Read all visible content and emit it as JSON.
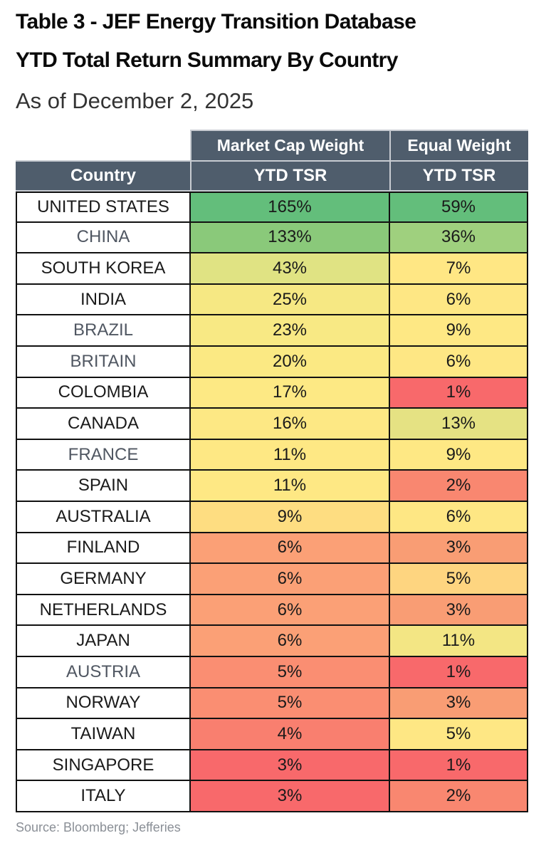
{
  "title_line1": "Table 3 - JEF Energy Transition Database",
  "title_line2": "YTD Total Return Summary By Country",
  "subtitle": "As of December 2, 2025",
  "source": "Source: Bloomberg; Jefferies",
  "header": {
    "group_market_cap": "Market Cap Weight",
    "group_equal": "Equal Weight",
    "col_country": "Country",
    "col_mcap_tsr": "YTD TSR",
    "col_eq_tsr": "YTD TSR"
  },
  "colors": {
    "header_bg": "#4f5d6c",
    "scale_high": "#63be7b",
    "scale_mid": "#ffeb84",
    "scale_low": "#f8696b"
  },
  "chart_data": {
    "type": "table",
    "columns": [
      "Country",
      "Market Cap Weight YTD TSR",
      "Equal Weight YTD TSR"
    ],
    "rows": [
      {
        "country": "UNITED STATES",
        "mcap": "165%",
        "eq": "59%",
        "mcap_value": 165,
        "eq_value": 59
      },
      {
        "country": "CHINA",
        "mcap": "133%",
        "eq": "36%",
        "mcap_value": 133,
        "eq_value": 36
      },
      {
        "country": "SOUTH KOREA",
        "mcap": "43%",
        "eq": "7%",
        "mcap_value": 43,
        "eq_value": 7
      },
      {
        "country": "INDIA",
        "mcap": "25%",
        "eq": "6%",
        "mcap_value": 25,
        "eq_value": 6
      },
      {
        "country": "BRAZIL",
        "mcap": "23%",
        "eq": "9%",
        "mcap_value": 23,
        "eq_value": 9
      },
      {
        "country": "BRITAIN",
        "mcap": "20%",
        "eq": "6%",
        "mcap_value": 20,
        "eq_value": 6
      },
      {
        "country": "COLOMBIA",
        "mcap": "17%",
        "eq": "1%",
        "mcap_value": 17,
        "eq_value": 1
      },
      {
        "country": "CANADA",
        "mcap": "16%",
        "eq": "13%",
        "mcap_value": 16,
        "eq_value": 13
      },
      {
        "country": "FRANCE",
        "mcap": "11%",
        "eq": "9%",
        "mcap_value": 11,
        "eq_value": 9
      },
      {
        "country": "SPAIN",
        "mcap": "11%",
        "eq": "2%",
        "mcap_value": 11,
        "eq_value": 2
      },
      {
        "country": "AUSTRALIA",
        "mcap": "9%",
        "eq": "6%",
        "mcap_value": 9,
        "eq_value": 6
      },
      {
        "country": "FINLAND",
        "mcap": "6%",
        "eq": "3%",
        "mcap_value": 6,
        "eq_value": 3
      },
      {
        "country": "GERMANY",
        "mcap": "6%",
        "eq": "5%",
        "mcap_value": 6,
        "eq_value": 5
      },
      {
        "country": "NETHERLANDS",
        "mcap": "6%",
        "eq": "3%",
        "mcap_value": 6,
        "eq_value": 3
      },
      {
        "country": "JAPAN",
        "mcap": "6%",
        "eq": "11%",
        "mcap_value": 6,
        "eq_value": 11
      },
      {
        "country": "AUSTRIA",
        "mcap": "5%",
        "eq": "1%",
        "mcap_value": 5,
        "eq_value": 1
      },
      {
        "country": "NORWAY",
        "mcap": "5%",
        "eq": "3%",
        "mcap_value": 5,
        "eq_value": 3
      },
      {
        "country": "TAIWAN",
        "mcap": "4%",
        "eq": "5%",
        "mcap_value": 4,
        "eq_value": 5
      },
      {
        "country": "SINGAPORE",
        "mcap": "3%",
        "eq": "1%",
        "mcap_value": 3,
        "eq_value": 1
      },
      {
        "country": "ITALY",
        "mcap": "3%",
        "eq": "2%",
        "mcap_value": 3,
        "eq_value": 2
      }
    ],
    "cell_colors": {
      "mcap": [
        "#63be7b",
        "#8ac97a",
        "#e0e383",
        "#f6e883",
        "#f8e984",
        "#fbe983",
        "#fde984",
        "#fde884",
        "#fee884",
        "#fee884",
        "#fedd81",
        "#fba076",
        "#fba076",
        "#fba076",
        "#fba076",
        "#fa8e72",
        "#fa8e72",
        "#f97f6f",
        "#f8696b",
        "#f8696b"
      ],
      "eq": [
        "#63be7b",
        "#9fd07e",
        "#ffe784",
        "#fee784",
        "#fee884",
        "#fee784",
        "#f8696b",
        "#e5e283",
        "#fee884",
        "#f98770",
        "#fee784",
        "#f99d74",
        "#fed580",
        "#f99d74",
        "#f3e684",
        "#f8696b",
        "#f99d74",
        "#fee784",
        "#f8696b",
        "#f98770"
      ]
    }
  }
}
